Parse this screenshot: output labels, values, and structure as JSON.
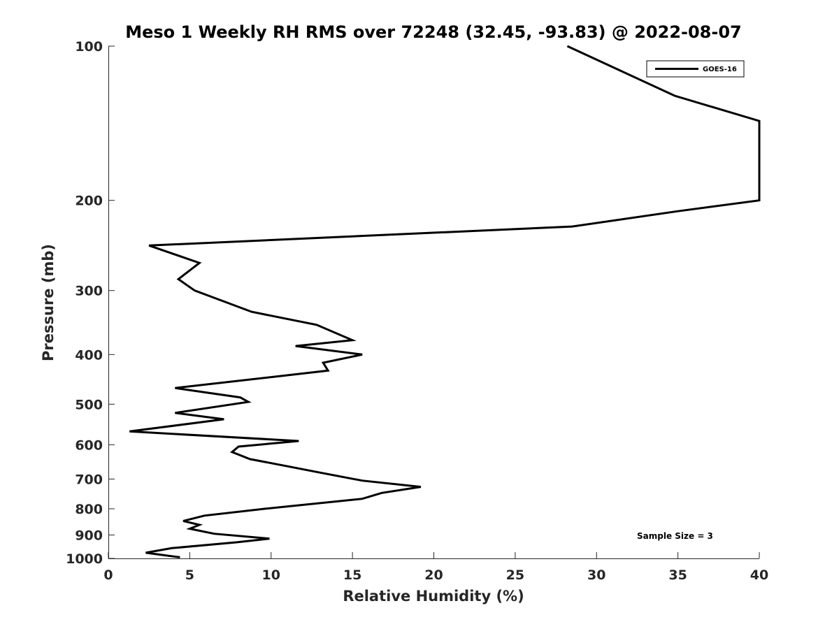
{
  "chart_data": {
    "type": "line",
    "title": "Meso 1 Weekly RH RMS over 72248 (32.45, -93.83) @ 2022-08-07",
    "xlabel": "Relative Humidity (%)",
    "ylabel": "Pressure (mb)",
    "xlim": [
      0,
      40
    ],
    "ylim": [
      100,
      1000
    ],
    "y_scale": "log",
    "y_reversed": true,
    "grid": false,
    "x_ticks": [
      "0",
      "5",
      "10",
      "15",
      "20",
      "25",
      "30",
      "35",
      "40"
    ],
    "y_ticks": [
      "100",
      "200",
      "300",
      "400",
      "500",
      "600",
      "700",
      "800",
      "900",
      "1000"
    ],
    "legend_position": "top-right",
    "series": [
      {
        "name": "GOES-16",
        "color": "#000000",
        "points": [
          [
            28.2,
            100
          ],
          [
            34.8,
            125
          ],
          [
            40,
            140
          ],
          [
            40,
            200
          ],
          [
            35,
            210
          ],
          [
            28.5,
            225
          ],
          [
            2.5,
            245
          ],
          [
            5.6,
            265
          ],
          [
            4.3,
            285
          ],
          [
            5.3,
            300
          ],
          [
            8.8,
            330
          ],
          [
            12.8,
            350
          ],
          [
            15.0,
            375
          ],
          [
            11.5,
            385
          ],
          [
            15.6,
            400
          ],
          [
            13.2,
            415
          ],
          [
            13.5,
            430
          ],
          [
            4.1,
            465
          ],
          [
            8.1,
            485
          ],
          [
            8.6,
            495
          ],
          [
            4.1,
            520
          ],
          [
            7.1,
            535
          ],
          [
            1.3,
            565
          ],
          [
            11.7,
            590
          ],
          [
            8.0,
            605
          ],
          [
            7.6,
            620
          ],
          [
            8.7,
            640
          ],
          [
            10.9,
            660
          ],
          [
            13.0,
            680
          ],
          [
            15.6,
            705
          ],
          [
            19.2,
            725
          ],
          [
            16.8,
            745
          ],
          [
            15.6,
            765
          ],
          [
            9.6,
            800
          ],
          [
            5.9,
            825
          ],
          [
            4.6,
            845
          ],
          [
            5.6,
            860
          ],
          [
            5.0,
            875
          ],
          [
            6.5,
            895
          ],
          [
            9.9,
            915
          ],
          [
            7.9,
            930
          ],
          [
            3.9,
            955
          ],
          [
            2.3,
            975
          ],
          [
            4.4,
            995
          ]
        ]
      }
    ],
    "annotations": [
      "Sample Size = 3"
    ]
  }
}
